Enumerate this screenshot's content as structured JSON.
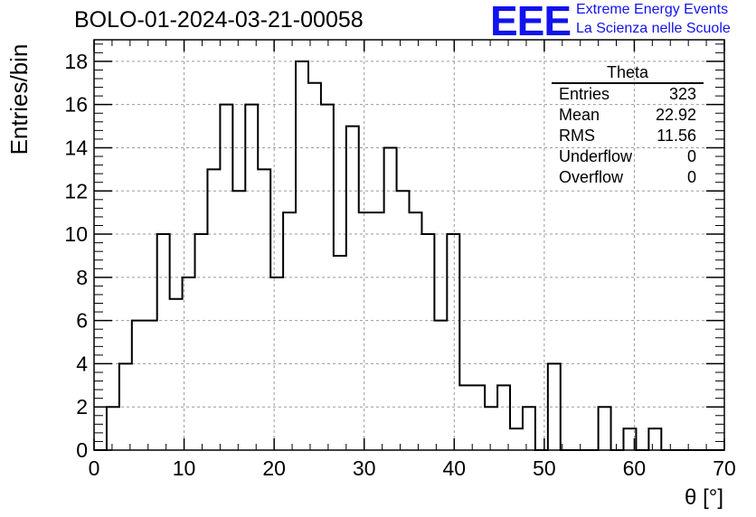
{
  "header": {
    "title": "BOLO-01-2024-03-21-00058",
    "logo_text": "EEE",
    "logo_line1": "Extreme Energy Events",
    "logo_line2": "La Scienza nelle Scuole"
  },
  "stats_box": {
    "title": "Theta",
    "rows": [
      {
        "label": "Entries",
        "value": "323"
      },
      {
        "label": "Mean",
        "value": "22.92"
      },
      {
        "label": "RMS",
        "value": "11.56"
      },
      {
        "label": "Underflow",
        "value": "0"
      },
      {
        "label": "Overflow",
        "value": "0"
      }
    ]
  },
  "colors": {
    "logo": "#1212ee",
    "grid": "#999999",
    "line": "#000000"
  },
  "chart_data": {
    "type": "histogram",
    "title": "BOLO-01-2024-03-21-00058",
    "xlabel": "θ [°]",
    "ylabel": "Entries/bin",
    "xlim": [
      0,
      70
    ],
    "ylim": [
      0,
      19
    ],
    "xticks": [
      0,
      10,
      20,
      30,
      40,
      50,
      60,
      70
    ],
    "yticks": [
      0,
      2,
      4,
      6,
      8,
      10,
      12,
      14,
      16,
      18
    ],
    "grid": true,
    "bin_width": 1.4,
    "values": [
      0,
      2,
      4,
      6,
      6,
      10,
      7,
      8,
      10,
      13,
      16,
      12,
      16,
      13,
      8,
      11,
      18,
      17,
      16,
      9,
      15,
      11,
      11,
      14,
      12,
      11,
      10,
      6,
      10,
      3,
      3,
      2,
      3,
      1,
      2,
      0,
      4,
      0,
      0,
      0,
      2,
      0,
      1,
      0,
      1,
      0,
      0,
      0,
      0,
      0
    ]
  }
}
